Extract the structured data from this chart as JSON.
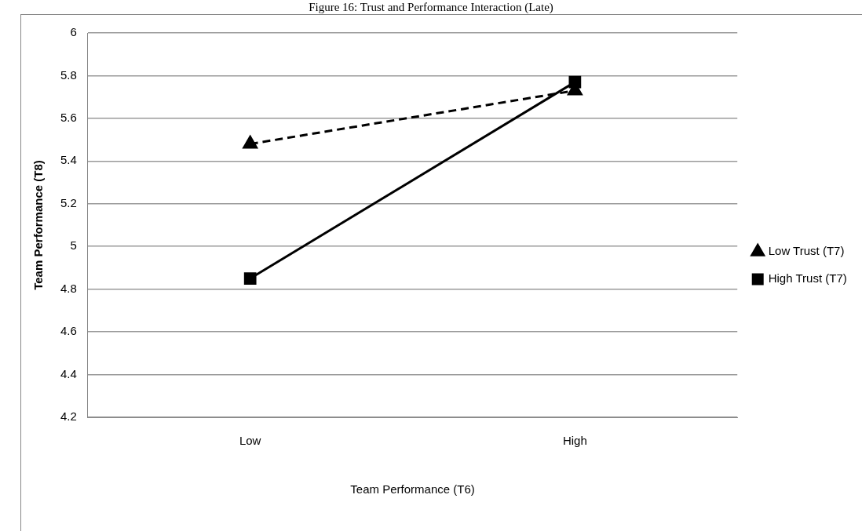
{
  "chart_data": {
    "type": "line",
    "title": "Figure 16: Trust and Performance Interaction (Late)",
    "xlabel": "Team Performance (T6)",
    "ylabel": "Team Performance (T8)",
    "categories": [
      "Low",
      "High"
    ],
    "series": [
      {
        "name": "Low Trust (T7)",
        "color": "#000000",
        "values": [
          5.48,
          5.73
        ],
        "marker": "triangle",
        "line_style": "dashed"
      },
      {
        "name": "High Trust (T7)",
        "color": "#000000",
        "values": [
          4.85,
          5.77
        ],
        "marker": "square",
        "line_style": "solid"
      }
    ],
    "ylim": [
      4.2,
      6
    ],
    "yticks": [
      4.2,
      4.4,
      4.6,
      4.8,
      5,
      5.2,
      5.4,
      5.6,
      5.8,
      6
    ],
    "grid": "y",
    "legend": "right"
  }
}
